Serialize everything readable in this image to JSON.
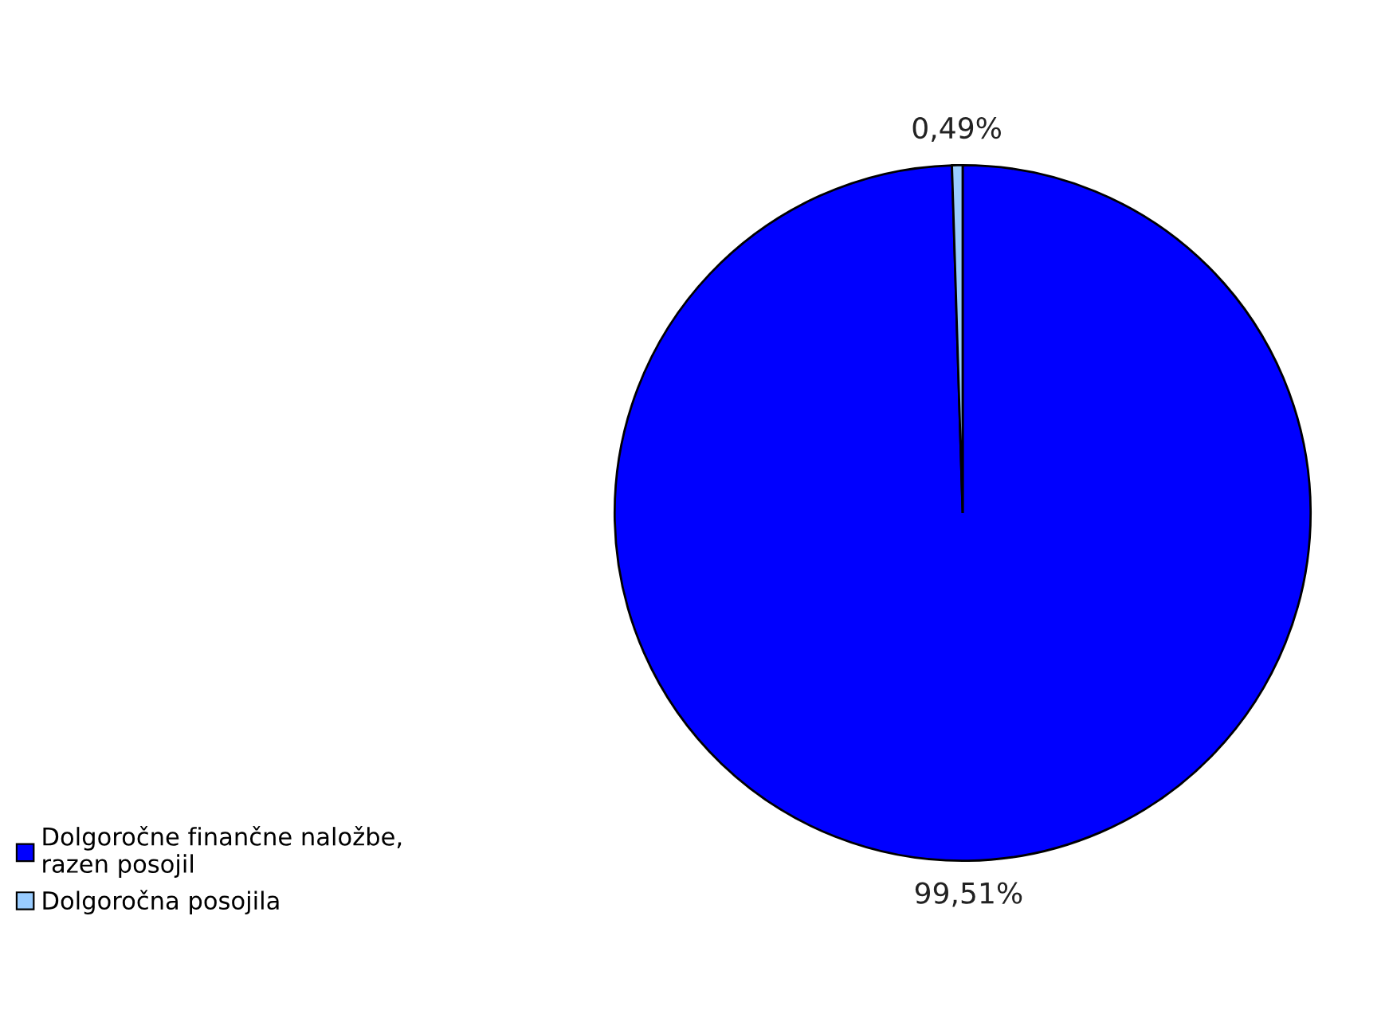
{
  "chart_data": {
    "type": "pie",
    "categories": [
      "Dolgoročne finančne naložbe,\nrazen posojil",
      "Dolgoročna posojila"
    ],
    "values": [
      99.51,
      0.49
    ],
    "colors": [
      "#0000ff",
      "#99ccff"
    ],
    "value_labels": [
      "99,51%",
      "0,49%"
    ],
    "legend": "bottom left"
  }
}
